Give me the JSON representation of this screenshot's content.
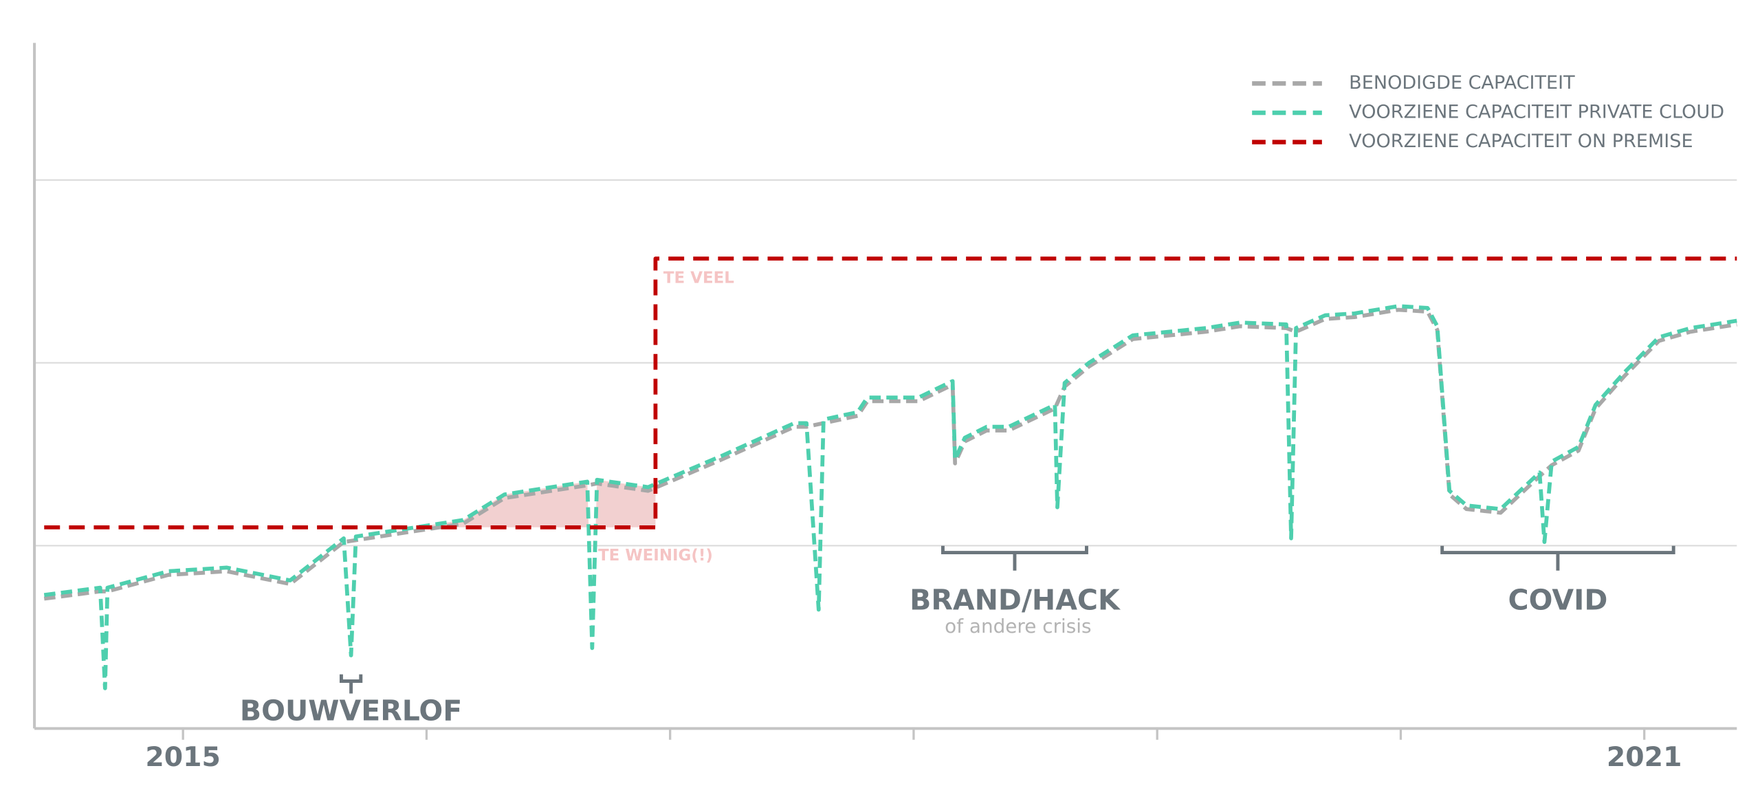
{
  "chart_data": {
    "type": "line",
    "xlim": [
      2014.39,
      2021.38
    ],
    "ylim": [
      0,
      3.75
    ],
    "xticks": [
      2015,
      2021
    ],
    "xminor_ticks": [
      2016,
      2017,
      2018,
      2019,
      2020
    ],
    "ygrid": [
      1,
      2,
      3
    ],
    "legend": "top-right",
    "series": [
      {
        "name": "BENODIGDE CAPACITEIT",
        "color": "#a8a8a8",
        "style": "dashed",
        "x": [
          2014.43,
          2014.66,
          2014.69,
          2014.94,
          2015.18,
          2015.44,
          2015.66,
          2015.71,
          2016.15,
          2016.32,
          2016.66,
          2016.7,
          2016.91,
          2017.21,
          2017.51,
          2017.56,
          2017.63,
          2017.77,
          2017.81,
          2018.02,
          2018.16,
          2018.17,
          2018.21,
          2018.3,
          2018.39,
          2018.58,
          2018.62,
          2018.72,
          2018.9,
          2019.2,
          2019.34,
          2019.53,
          2019.57,
          2019.69,
          2019.81,
          2019.99,
          2020.11,
          2020.15,
          2020.2,
          2020.27,
          2020.41,
          2020.57,
          2020.62,
          2020.73,
          2020.8,
          2020.92,
          2021.06,
          2021.19,
          2021.38
        ],
        "values": [
          0.71,
          0.75,
          0.75,
          0.84,
          0.86,
          0.79,
          1.02,
          1.03,
          1.12,
          1.26,
          1.33,
          1.34,
          1.3,
          1.47,
          1.65,
          1.65,
          1.67,
          1.71,
          1.79,
          1.79,
          1.88,
          1.45,
          1.57,
          1.63,
          1.63,
          1.75,
          1.87,
          1.98,
          2.13,
          2.17,
          2.2,
          2.19,
          2.17,
          2.24,
          2.25,
          2.29,
          2.28,
          2.18,
          1.28,
          1.2,
          1.18,
          1.38,
          1.44,
          1.52,
          1.75,
          1.93,
          2.12,
          2.17,
          2.21
        ]
      },
      {
        "name": "VOORZIENE CAPACITEIT PRIVATE CLOUD",
        "color": "#4ecfae",
        "style": "dashed",
        "x": [
          2014.43,
          2014.66,
          2014.68,
          2014.69,
          2014.94,
          2015.18,
          2015.44,
          2015.66,
          2015.69,
          2015.71,
          2016.15,
          2016.32,
          2016.66,
          2016.68,
          2016.7,
          2016.91,
          2017.21,
          2017.51,
          2017.56,
          2017.61,
          2017.63,
          2017.77,
          2017.81,
          2018.02,
          2018.16,
          2018.17,
          2018.21,
          2018.3,
          2018.39,
          2018.58,
          2018.59,
          2018.62,
          2018.72,
          2018.9,
          2019.2,
          2019.34,
          2019.53,
          2019.55,
          2019.57,
          2019.69,
          2019.81,
          2019.99,
          2020.11,
          2020.15,
          2020.2,
          2020.27,
          2020.41,
          2020.57,
          2020.59,
          2020.62,
          2020.73,
          2020.8,
          2020.92,
          2021.06,
          2021.19,
          2021.38
        ],
        "values": [
          0.73,
          0.77,
          0.22,
          0.77,
          0.86,
          0.88,
          0.81,
          1.04,
          0.4,
          1.05,
          1.14,
          1.28,
          1.35,
          0.44,
          1.36,
          1.32,
          1.49,
          1.67,
          1.67,
          0.65,
          1.69,
          1.73,
          1.81,
          1.81,
          1.9,
          1.47,
          1.59,
          1.65,
          1.65,
          1.77,
          1.21,
          1.89,
          2.0,
          2.15,
          2.19,
          2.22,
          2.21,
          1.04,
          2.19,
          2.26,
          2.27,
          2.31,
          2.3,
          2.2,
          1.3,
          1.22,
          1.2,
          1.4,
          1.02,
          1.46,
          1.54,
          1.77,
          1.95,
          2.14,
          2.19,
          2.23
        ]
      },
      {
        "name": "VOORZIENE CAPACITEIT ON PREMISE",
        "color": "#c00000",
        "style": "dashed",
        "x": [
          2014.43,
          2016.94,
          2016.94,
          2021.38
        ],
        "values": [
          1.1,
          1.1,
          2.57,
          2.57
        ]
      }
    ],
    "shortfall_color": "#f2d0d0",
    "annotation_color": "#f5c4c4",
    "notes": [
      "TE VEEL",
      "TE WEINIG(!)"
    ],
    "annotations": [
      {
        "text": "BOUWVERLOF",
        "span": [
          2015.65,
          2015.73
        ]
      },
      {
        "text": "BRAND/HACK",
        "subtext": "of andere crisis",
        "span": [
          2018.12,
          2018.71
        ]
      },
      {
        "text": "COVID",
        "span": [
          2020.17,
          2021.12
        ]
      }
    ]
  }
}
